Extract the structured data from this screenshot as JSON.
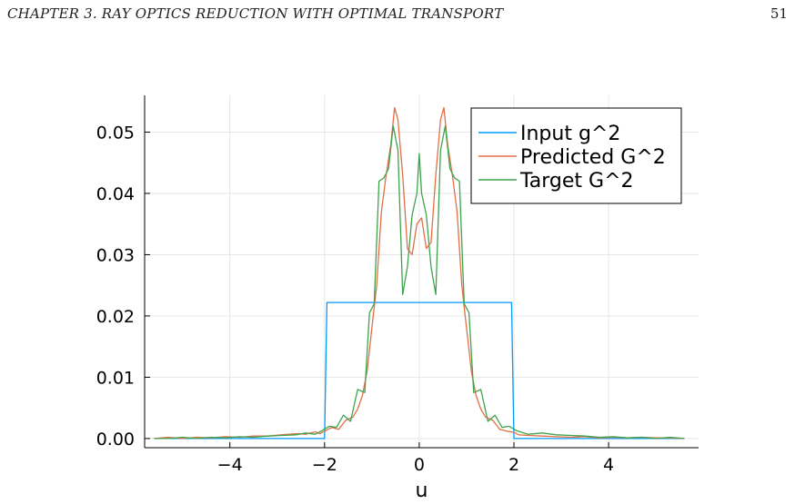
{
  "header": {
    "chapter": "CHAPTER 3.   RAY OPTICS REDUCTION WITH OPTIMAL TRANSPORT",
    "page_number": "51"
  },
  "chart_data": {
    "type": "line",
    "title": "",
    "xlabel": "u",
    "ylabel": "",
    "xlim": [
      -5.8,
      5.9
    ],
    "ylim": [
      -0.0015,
      0.056
    ],
    "xticks": [
      -4,
      -2,
      0,
      2,
      4
    ],
    "xtick_labels": [
      "−4",
      "−2",
      "0",
      "2",
      "4"
    ],
    "yticks": [
      0.0,
      0.01,
      0.02,
      0.03,
      0.04,
      0.05
    ],
    "ytick_labels": [
      "0.00",
      "0.01",
      "0.02",
      "0.03",
      "0.04",
      "0.05"
    ],
    "grid": true,
    "legend_position": "top-right",
    "series": [
      {
        "name": "Input g^2",
        "color": "#009AFA",
        "x": [
          -5.6,
          -2.0,
          -1.95,
          1.95,
          2.0,
          5.6
        ],
        "y": [
          0.0,
          0.0,
          0.0222,
          0.0222,
          0.0,
          0.0
        ]
      },
      {
        "name": "Predicted G^2",
        "color": "#E26F46",
        "x": [
          -5.6,
          -5.3,
          -5.0,
          -4.7,
          -4.4,
          -4.1,
          -3.8,
          -3.5,
          -3.2,
          -2.9,
          -2.6,
          -2.4,
          -2.2,
          -2.1,
          -2.0,
          -1.85,
          -1.7,
          -1.55,
          -1.4,
          -1.3,
          -1.2,
          -1.1,
          -1.0,
          -0.9,
          -0.8,
          -0.7,
          -0.6,
          -0.52,
          -0.45,
          -0.35,
          -0.25,
          -0.15,
          -0.05,
          0.05,
          0.15,
          0.25,
          0.35,
          0.45,
          0.52,
          0.6,
          0.7,
          0.8,
          0.9,
          1.0,
          1.1,
          1.2,
          1.3,
          1.4,
          1.55,
          1.7,
          1.85,
          2.0,
          2.1,
          2.3,
          2.6,
          2.9,
          3.2,
          3.5,
          3.8,
          4.1,
          4.4,
          4.7,
          5.0,
          5.3,
          5.6
        ],
        "y": [
          0.0,
          0.0002,
          0.0,
          0.0002,
          0.0001,
          0.0003,
          0.0002,
          0.0004,
          0.0004,
          0.0006,
          0.0008,
          0.0007,
          0.0011,
          0.0008,
          0.0012,
          0.0018,
          0.0015,
          0.003,
          0.0035,
          0.0048,
          0.007,
          0.011,
          0.018,
          0.025,
          0.037,
          0.043,
          0.048,
          0.054,
          0.052,
          0.043,
          0.031,
          0.03,
          0.035,
          0.036,
          0.031,
          0.032,
          0.043,
          0.052,
          0.054,
          0.048,
          0.043,
          0.037,
          0.025,
          0.018,
          0.011,
          0.007,
          0.0048,
          0.0035,
          0.003,
          0.0015,
          0.0012,
          0.001,
          0.0006,
          0.0005,
          0.0004,
          0.0003,
          0.0002,
          0.0003,
          0.0001,
          0.0002,
          0.0001,
          0.0002,
          0.0001,
          0.0001,
          0.0
        ]
      },
      {
        "name": "Target G^2",
        "color": "#3DA44D",
        "x": [
          -5.6,
          -5.3,
          -5.0,
          -4.7,
          -4.4,
          -4.1,
          -3.8,
          -3.5,
          -3.2,
          -2.9,
          -2.6,
          -2.4,
          -2.2,
          -2.05,
          -1.9,
          -1.75,
          -1.6,
          -1.45,
          -1.3,
          -1.15,
          -1.05,
          -0.95,
          -0.85,
          -0.75,
          -0.65,
          -0.55,
          -0.45,
          -0.35,
          -0.25,
          -0.15,
          -0.05,
          0.0,
          0.05,
          0.15,
          0.25,
          0.35,
          0.45,
          0.55,
          0.65,
          0.75,
          0.85,
          0.95,
          1.05,
          1.15,
          1.3,
          1.45,
          1.6,
          1.75,
          1.9,
          2.05,
          2.3,
          2.6,
          2.9,
          3.2,
          3.5,
          3.8,
          4.1,
          4.4,
          4.7,
          5.0,
          5.3,
          5.6
        ],
        "y": [
          0.0,
          0.0,
          0.0002,
          0.0,
          0.0002,
          0.0001,
          0.0003,
          0.0002,
          0.0004,
          0.0005,
          0.0006,
          0.0009,
          0.0007,
          0.0013,
          0.002,
          0.0018,
          0.0038,
          0.0028,
          0.008,
          0.0075,
          0.0205,
          0.022,
          0.042,
          0.0425,
          0.044,
          0.051,
          0.047,
          0.0235,
          0.028,
          0.0365,
          0.04,
          0.0465,
          0.04,
          0.0365,
          0.028,
          0.0235,
          0.047,
          0.051,
          0.044,
          0.0425,
          0.042,
          0.022,
          0.0205,
          0.0075,
          0.008,
          0.0028,
          0.0038,
          0.0018,
          0.002,
          0.0013,
          0.0007,
          0.0009,
          0.0006,
          0.0005,
          0.0004,
          0.0002,
          0.0003,
          0.0001,
          0.0002,
          0.0,
          0.0002,
          0.0
        ]
      }
    ]
  }
}
